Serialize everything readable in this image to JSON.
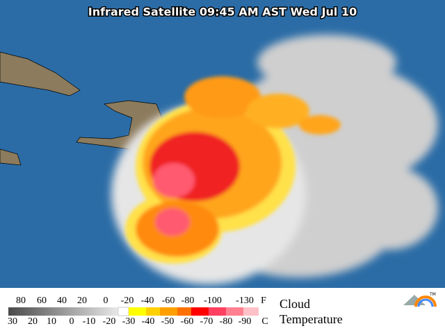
{
  "header": {
    "title": "Infrared Satellite 09:45 AM AST Wed Jul 10"
  },
  "legend": {
    "fahrenheit_labels": [
      "80",
      "60",
      "40",
      "20",
      "0",
      "-20",
      "-40",
      "-60",
      "-80",
      "-100",
      "-130"
    ],
    "fahrenheit_unit": "F",
    "celsius_labels": [
      "30",
      "20",
      "10",
      "0",
      "-10",
      "-20",
      "-30",
      "-40",
      "-50",
      "-60",
      "-70",
      "-80",
      "-90"
    ],
    "celsius_unit": "C",
    "caption_line1": "Cloud",
    "caption_line2": "Temperature",
    "trademark": "TM"
  }
}
